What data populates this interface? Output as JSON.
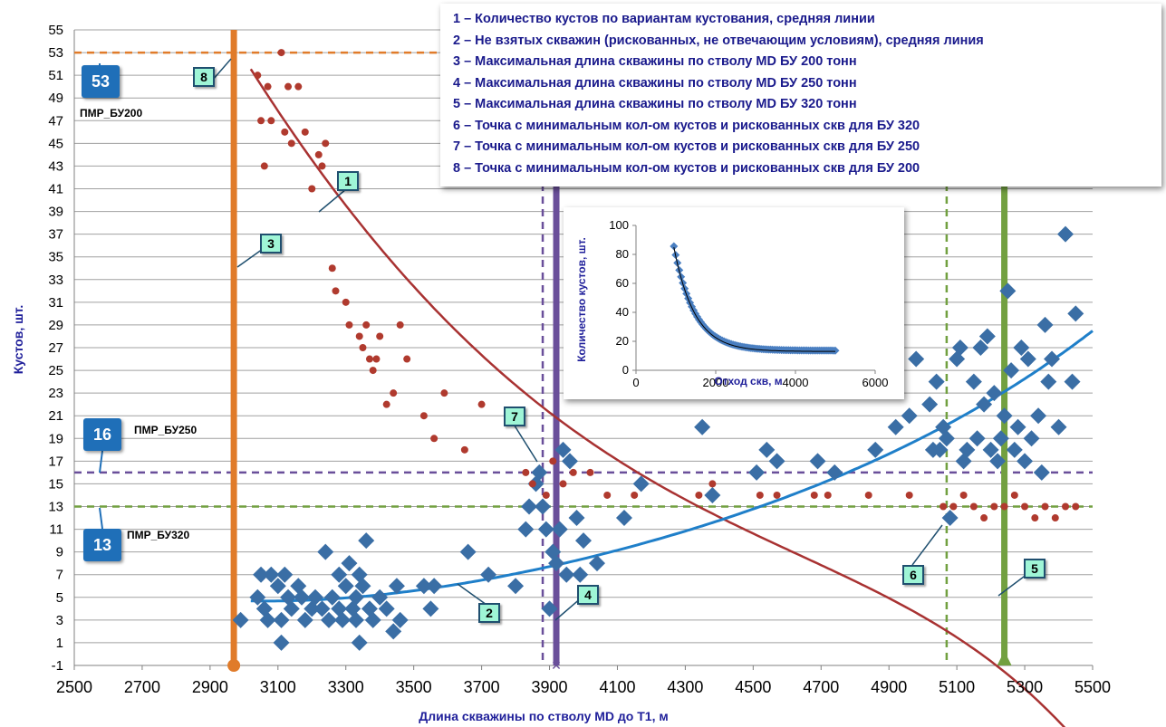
{
  "chart_data": {
    "type": "scatter",
    "xlabel": "Длина скважины по стволу MD до Т1, м",
    "ylabel": "Кустов, шт.",
    "xlim": [
      2500,
      5500
    ],
    "ylim": [
      -1,
      55
    ],
    "x_ticks": [
      "2500",
      "2700",
      "2900",
      "3100",
      "3300",
      "3500",
      "3700",
      "3900",
      "4100",
      "4300",
      "4500",
      "4700",
      "4900",
      "5100",
      "5300",
      "5500"
    ],
    "y_ticks": [
      "-1",
      "1",
      "3",
      "5",
      "7",
      "9",
      "11",
      "13",
      "15",
      "17",
      "19",
      "21",
      "23",
      "25",
      "27",
      "29",
      "31",
      "33",
      "35",
      "37",
      "39",
      "41",
      "43",
      "45",
      "47",
      "49",
      "51",
      "53",
      "55"
    ],
    "grid": true,
    "series": [
      {
        "color": "#3a6ea5",
        "marker": "diamond",
        "points": [
          [
            2990,
            3
          ],
          [
            3040,
            5
          ],
          [
            3050,
            7
          ],
          [
            3060,
            4
          ],
          [
            3070,
            3
          ],
          [
            3080,
            7
          ],
          [
            3100,
            6
          ],
          [
            3110,
            3
          ],
          [
            3110,
            1
          ],
          [
            3120,
            7
          ],
          [
            3130,
            5
          ],
          [
            3140,
            4
          ],
          [
            3160,
            6
          ],
          [
            3170,
            5
          ],
          [
            3180,
            3
          ],
          [
            3200,
            4
          ],
          [
            3210,
            5
          ],
          [
            3230,
            4
          ],
          [
            3240,
            9
          ],
          [
            3250,
            3
          ],
          [
            3260,
            5
          ],
          [
            3280,
            7
          ],
          [
            3280,
            4
          ],
          [
            3290,
            3
          ],
          [
            3300,
            6
          ],
          [
            3310,
            8
          ],
          [
            3320,
            4
          ],
          [
            3330,
            5
          ],
          [
            3330,
            3
          ],
          [
            3340,
            1
          ],
          [
            3340,
            7
          ],
          [
            3350,
            6
          ],
          [
            3360,
            10
          ],
          [
            3370,
            4
          ],
          [
            3380,
            3
          ],
          [
            3400,
            5
          ],
          [
            3420,
            4
          ],
          [
            3440,
            2
          ],
          [
            3450,
            6
          ],
          [
            3460,
            3
          ],
          [
            3530,
            6
          ],
          [
            3550,
            4
          ],
          [
            3560,
            6
          ],
          [
            3660,
            9
          ],
          [
            3720,
            7
          ],
          [
            3800,
            6
          ],
          [
            3830,
            11
          ],
          [
            3840,
            13
          ],
          [
            3860,
            15
          ],
          [
            3870,
            16
          ],
          [
            3880,
            13
          ],
          [
            3890,
            11
          ],
          [
            3900,
            4
          ],
          [
            3910,
            9
          ],
          [
            3920,
            8
          ],
          [
            3930,
            11
          ],
          [
            3940,
            18
          ],
          [
            3950,
            7
          ],
          [
            3960,
            17
          ],
          [
            3980,
            12
          ],
          [
            3990,
            7
          ],
          [
            4000,
            10
          ],
          [
            4040,
            8
          ],
          [
            4120,
            12
          ],
          [
            4170,
            15
          ],
          [
            4350,
            20
          ],
          [
            4380,
            14
          ],
          [
            4510,
            16
          ],
          [
            4540,
            18
          ],
          [
            4570,
            17
          ],
          [
            4690,
            17
          ],
          [
            4740,
            16
          ],
          [
            4860,
            18
          ],
          [
            4920,
            20
          ],
          [
            4960,
            21
          ],
          [
            4980,
            26
          ],
          [
            5020,
            22
          ],
          [
            5030,
            18
          ],
          [
            5040,
            24
          ],
          [
            5050,
            18
          ],
          [
            5060,
            20
          ],
          [
            5070,
            19
          ],
          [
            5080,
            12
          ],
          [
            5100,
            26
          ],
          [
            5110,
            27
          ],
          [
            5120,
            17
          ],
          [
            5130,
            18
          ],
          [
            5150,
            24
          ],
          [
            5160,
            19
          ],
          [
            5170,
            27
          ],
          [
            5180,
            22
          ],
          [
            5190,
            28
          ],
          [
            5200,
            18
          ],
          [
            5210,
            23
          ],
          [
            5220,
            17
          ],
          [
            5230,
            19
          ],
          [
            5240,
            21
          ],
          [
            5250,
            32
          ],
          [
            5260,
            25
          ],
          [
            5270,
            18
          ],
          [
            5280,
            20
          ],
          [
            5290,
            27
          ],
          [
            5300,
            17
          ],
          [
            5310,
            26
          ],
          [
            5320,
            19
          ],
          [
            5340,
            21
          ],
          [
            5350,
            16
          ],
          [
            5360,
            29
          ],
          [
            5370,
            24
          ],
          [
            5380,
            26
          ],
          [
            5400,
            20
          ],
          [
            5420,
            37
          ],
          [
            5440,
            24
          ],
          [
            5450,
            30
          ]
        ]
      },
      {
        "color": "#b03a2e",
        "marker": "circle",
        "points": [
          [
            3040,
            51
          ],
          [
            3050,
            47
          ],
          [
            3060,
            43
          ],
          [
            3070,
            50
          ],
          [
            3080,
            47
          ],
          [
            3110,
            53
          ],
          [
            3120,
            46
          ],
          [
            3130,
            50
          ],
          [
            3140,
            45
          ],
          [
            3160,
            50
          ],
          [
            3180,
            46
          ],
          [
            3200,
            41
          ],
          [
            3220,
            44
          ],
          [
            3230,
            43
          ],
          [
            3240,
            45
          ],
          [
            3260,
            34
          ],
          [
            3270,
            32
          ],
          [
            3300,
            31
          ],
          [
            3310,
            29
          ],
          [
            3340,
            28
          ],
          [
            3350,
            27
          ],
          [
            3360,
            29
          ],
          [
            3370,
            26
          ],
          [
            3380,
            25
          ],
          [
            3390,
            26
          ],
          [
            3400,
            28
          ],
          [
            3420,
            22
          ],
          [
            3440,
            23
          ],
          [
            3460,
            29
          ],
          [
            3480,
            26
          ],
          [
            3530,
            21
          ],
          [
            3560,
            19
          ],
          [
            3590,
            23
          ],
          [
            3650,
            18
          ],
          [
            3700,
            22
          ],
          [
            3830,
            16
          ],
          [
            3850,
            15
          ],
          [
            3890,
            14
          ],
          [
            3910,
            17
          ],
          [
            3940,
            15
          ],
          [
            3970,
            16
          ],
          [
            4020,
            16
          ],
          [
            4070,
            14
          ],
          [
            4150,
            14
          ],
          [
            4340,
            14
          ],
          [
            4380,
            15
          ],
          [
            4520,
            14
          ],
          [
            4570,
            14
          ],
          [
            4680,
            14
          ],
          [
            4720,
            14
          ],
          [
            4840,
            14
          ],
          [
            4960,
            14
          ],
          [
            5060,
            13
          ],
          [
            5090,
            13
          ],
          [
            5120,
            14
          ],
          [
            5150,
            13
          ],
          [
            5180,
            12
          ],
          [
            5210,
            13
          ],
          [
            5240,
            13
          ],
          [
            5270,
            14
          ],
          [
            5300,
            13
          ],
          [
            5330,
            12
          ],
          [
            5360,
            13
          ],
          [
            5390,
            12
          ],
          [
            5420,
            13
          ],
          [
            5450,
            13
          ]
        ]
      }
    ],
    "vlines": [
      {
        "x": 2970,
        "color": "#e07b2a"
      },
      {
        "x": 3920,
        "color": "#6a4f9a"
      },
      {
        "x": 5240,
        "color": "#72a040"
      },
      {
        "x": 3880,
        "color": "#6a4f9a",
        "dashed": true
      },
      {
        "x": 5070,
        "color": "#72a040",
        "dashed": true
      }
    ],
    "hlines": [
      {
        "y": 53,
        "color": "#e07b2a"
      },
      {
        "y": 16,
        "color": "#6a4f9a"
      },
      {
        "y": 13,
        "color": "#72a040"
      }
    ],
    "inset": {
      "xlabel": "Отход скв, м",
      "ylabel": "Количество кустов, шт.",
      "x_ticks": [
        "0",
        "2000",
        "4000",
        "6000"
      ],
      "y_ticks": [
        "0",
        "20",
        "40",
        "60",
        "80",
        "100"
      ],
      "xlim": [
        0,
        6000
      ],
      "ylim": [
        0,
        100
      ]
    }
  },
  "legend_items": [
    "1   – Количество кустов по вариантам кустования, средняя линии",
    "2   – Не взятых  скважин (рискованных, не отвечающим условиям), средняя линия",
    "3   – Максимальная длина скважины по стволу MD БУ 200 тонн",
    "4   – Максимальная длина скважины по стволу MD БУ 250 тонн",
    "5   – Максимальная длина скважины по стволу MD БУ 320 тонн",
    "6  – Точка с минимальным кол-ом кустов и рискованных скв для БУ 320",
    "7  – Точка с минимальным кол-ом кустов и рискованных скв для БУ 250",
    "8  – Точка с минимальным кол-ом кустов и рискованных скв для БУ 200"
  ],
  "callouts": [
    "1",
    "2",
    "3",
    "4",
    "5",
    "6",
    "7",
    "8"
  ],
  "level_badges": [
    "53",
    "16",
    "13"
  ],
  "level_labels": [
    "ПМР_БУ200",
    "ПМР_БУ250",
    "ПМР_БУ320"
  ]
}
